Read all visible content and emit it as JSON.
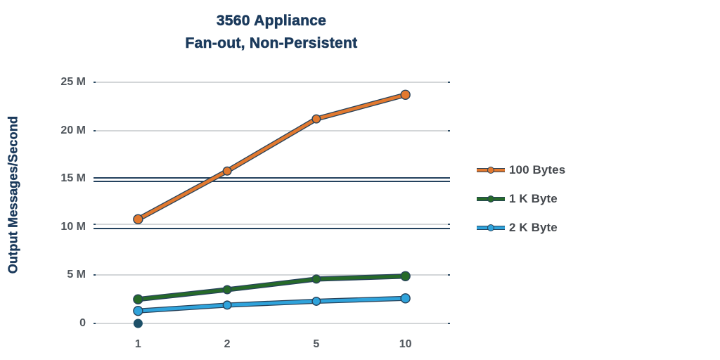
{
  "title": {
    "line1": "3560 Appliance",
    "line2": "Fan-out, Non-Persistent"
  },
  "y_axis_title": "Output Messages/Second",
  "colors": {
    "title_navy": "#1b3a5c",
    "gridline_gray": "#d3d6d8",
    "gridline_navy": "#24425e",
    "tick_label_gray": "#50565c",
    "legend_text_gray": "#45494e",
    "series_outline_navy": "#27425a"
  },
  "chart_data": {
    "type": "line",
    "title": "3560 Appliance",
    "subtitle": "Fan-out, Non-Persistent",
    "xlabel": "",
    "ylabel": "Output Messages/Second",
    "units": "Millions of messages/second",
    "categories": [
      "1",
      "2",
      "5",
      "10"
    ],
    "series": [
      {
        "name": "100 Bytes",
        "color": "#e2792f",
        "values": [
          10.8,
          15.8,
          21.2,
          23.7
        ]
      },
      {
        "name": "1 K Byte",
        "color": "#266a29",
        "values": [
          2.5,
          3.5,
          4.6,
          4.9
        ]
      },
      {
        "name": "2 K Byte",
        "color": "#2fa3db",
        "values": [
          1.3,
          1.9,
          2.3,
          2.6
        ]
      }
    ],
    "extra_points": [
      {
        "category_index": 0,
        "value": 0,
        "color": "#1d5068"
      }
    ],
    "y_ticks": [
      {
        "value": 25,
        "label": "25 M"
      },
      {
        "value": 20,
        "label": "20 M"
      },
      {
        "value": 15,
        "label": "15 M"
      },
      {
        "value": 10,
        "label": "10 M"
      },
      {
        "value": 5,
        "label": "5 M"
      },
      {
        "value": 0,
        "label": "0"
      }
    ],
    "ylim": [
      0,
      25
    ],
    "grid": true,
    "gridline_styles": [
      {
        "value": 25,
        "style": "plain"
      },
      {
        "value": 20,
        "style": "plain"
      },
      {
        "value": 15,
        "style": "navy-double"
      },
      {
        "value": 10,
        "style": "navy-shadow"
      },
      {
        "value": 5,
        "style": "plain"
      },
      {
        "value": 0,
        "style": "plain"
      }
    ],
    "legend_position": "right"
  }
}
